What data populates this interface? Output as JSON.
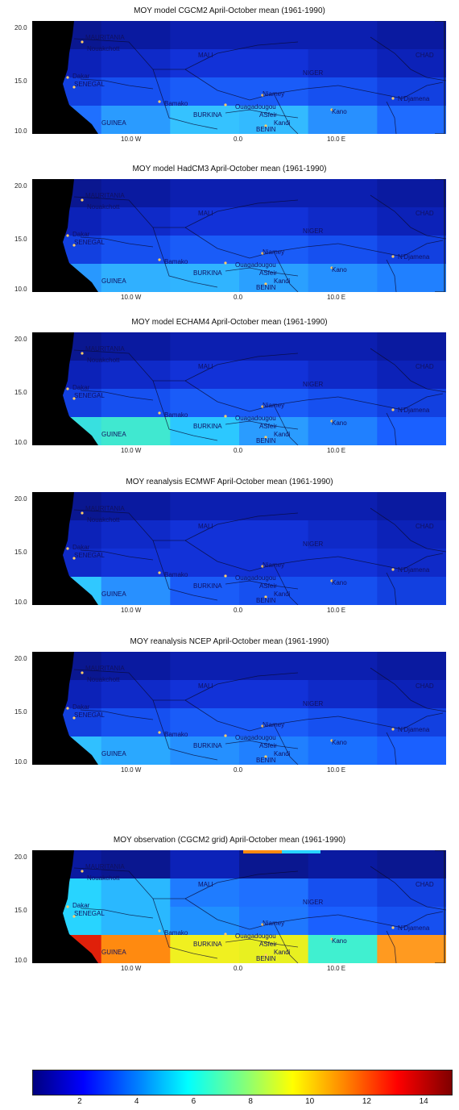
{
  "panels": [
    {
      "title": "MOY model CGCM2 April-October mean (1961-1990)",
      "style": "model1"
    },
    {
      "title": "MOY model HadCM3 April-October mean (1961-1990)",
      "style": "model2"
    },
    {
      "title": "MOY model ECHAM4 April-October mean (1961-1990)",
      "style": "model3"
    },
    {
      "title": "MOY reanalysis  ECMWF April-October mean (1961-1990)",
      "style": "rean1"
    },
    {
      "title": "MOY reanalysis  NCEP April-October mean (1961-1990)",
      "style": "rean2"
    },
    {
      "title": "MOY observation (CGCM2 grid) April-October mean (1961-1990)",
      "style": "obs"
    }
  ],
  "axes": {
    "y_top": "20.0",
    "y_mid": "15.0",
    "y_bottom": "10.0",
    "x_left": "10.0  W",
    "x_center": "0.0",
    "x_right": "10.0  E"
  },
  "places": {
    "mauritania": "MAURITANIA",
    "nouakchott": "Nouakchott",
    "mali": "MALI",
    "niger": "NIGER",
    "chad": "CHAD",
    "senegal": "SENEGAL",
    "dakar": "Dakar",
    "guinea": "GUINEA",
    "bamako": "Bamako",
    "burkina": "BURKINA",
    "ouagadougou": "Ouagadougou",
    "niamey": "Niamey",
    "benin": "BENIN",
    "kandi": "Kandi",
    "kano": "Kano",
    "n_djamena": "N'Djamena",
    "asfeir": "ASfeir"
  },
  "colorbar": {
    "ticks": [
      "2",
      "4",
      "6",
      "8",
      "10",
      "12",
      "14"
    ],
    "min": 0.3,
    "max": 15
  },
  "colors": {
    "land_mask": "#000000",
    "low": "#0b1aa8",
    "mid": "#1f66ff",
    "cyan": "#28d4ff",
    "yellow": "#e8f020",
    "orange": "#ff8a10",
    "red": "#e0200a"
  }
}
